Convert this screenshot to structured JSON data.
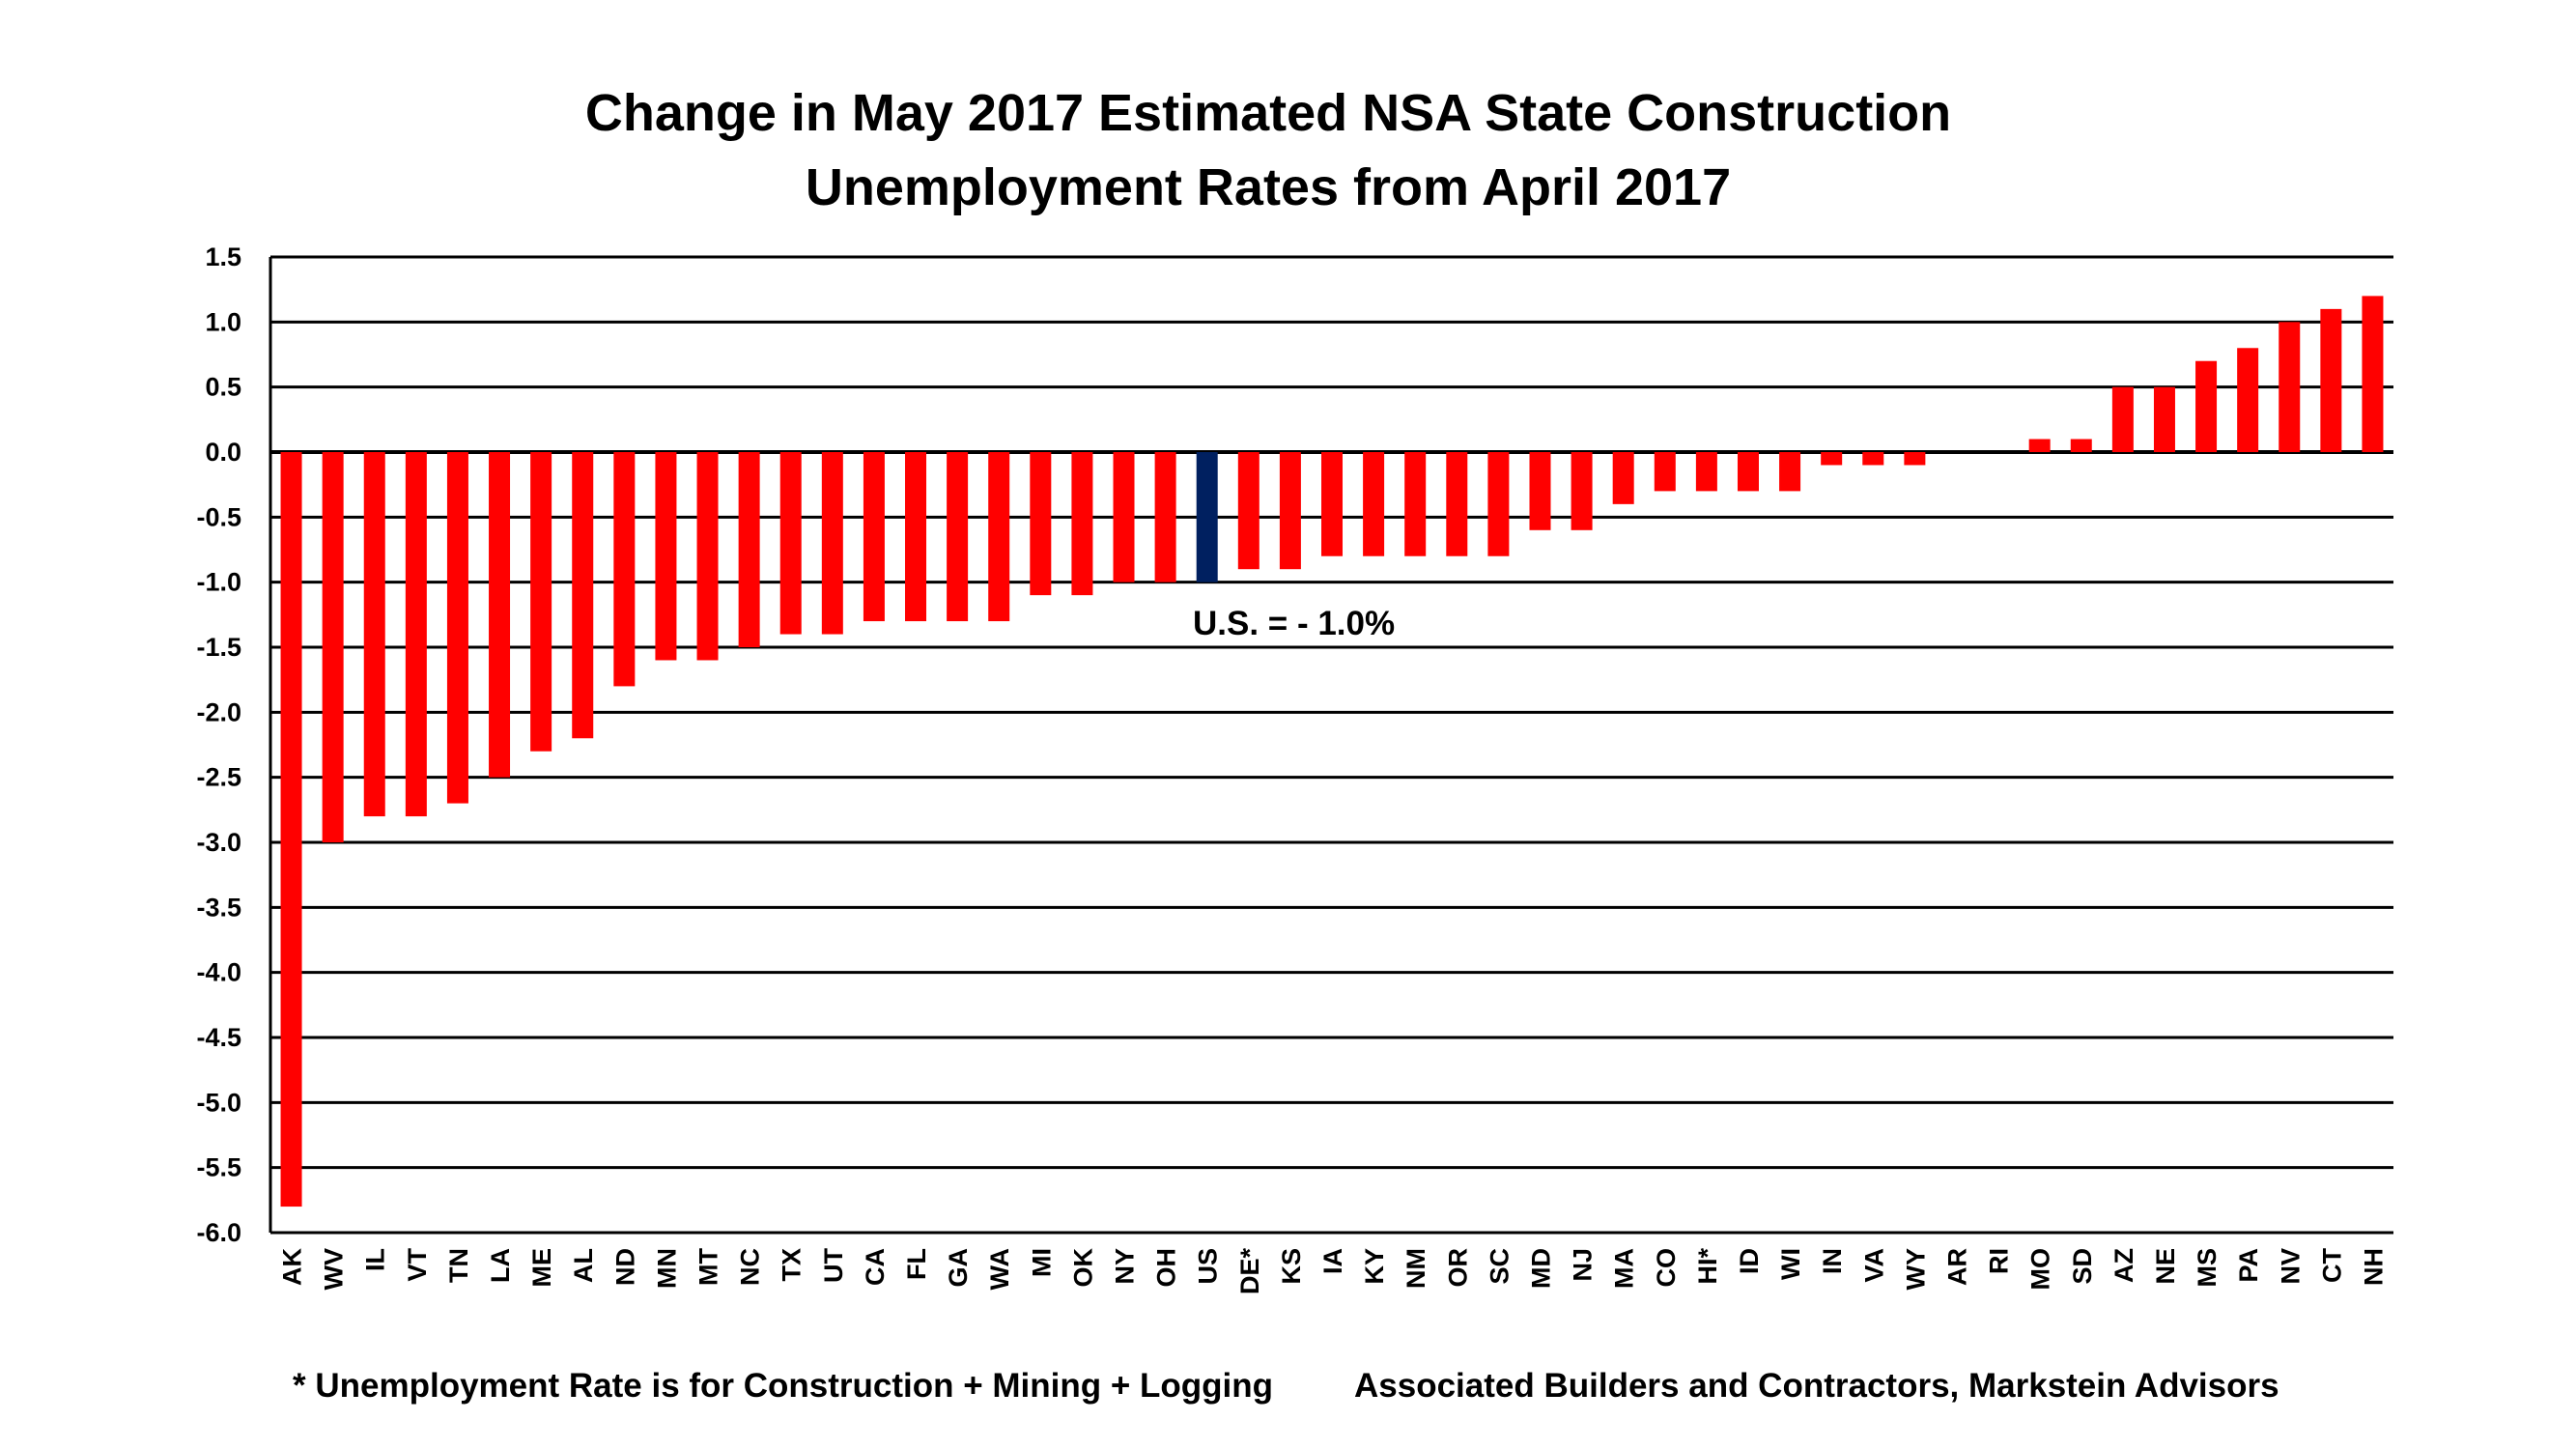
{
  "chart_data": {
    "type": "bar",
    "title": [
      "Change in May 2017 Estimated NSA State Construction",
      "Unemployment Rates from April 2017"
    ],
    "xlabel": "",
    "ylabel": "",
    "ylim": [
      -6.0,
      1.5
    ],
    "yticks": [
      "1.5",
      "1.0",
      "0.5",
      "0.0",
      "-0.5",
      "-1.0",
      "-1.5",
      "-2.0",
      "-2.5",
      "-3.0",
      "-3.5",
      "-4.0",
      "-4.5",
      "-5.0",
      "-5.5",
      "-6.0"
    ],
    "grid": true,
    "categories": [
      "AK",
      "WV",
      "IL",
      "VT",
      "TN",
      "LA",
      "ME",
      "AL",
      "ND",
      "MN",
      "MT",
      "NC",
      "TX",
      "UT",
      "CA",
      "FL",
      "GA",
      "WA",
      "MI",
      "OK",
      "NY",
      "OH",
      "US",
      "DE*",
      "KS",
      "IA",
      "KY",
      "NM",
      "OR",
      "SC",
      "MD",
      "NJ",
      "MA",
      "CO",
      "HI*",
      "ID",
      "WI",
      "IN",
      "VA",
      "WY",
      "AR",
      "RI",
      "MO",
      "SD",
      "AZ",
      "NE",
      "MS",
      "PA",
      "NV",
      "CT",
      "NH"
    ],
    "values": [
      -5.8,
      -3.0,
      -2.8,
      -2.8,
      -2.7,
      -2.5,
      -2.3,
      -2.2,
      -1.8,
      -1.6,
      -1.6,
      -1.5,
      -1.4,
      -1.4,
      -1.3,
      -1.3,
      -1.3,
      -1.3,
      -1.1,
      -1.1,
      -1.0,
      -1.0,
      -1.0,
      -0.9,
      -0.9,
      -0.8,
      -0.8,
      -0.8,
      -0.8,
      -0.8,
      -0.6,
      -0.6,
      -0.4,
      -0.3,
      -0.3,
      -0.3,
      -0.3,
      -0.1,
      -0.1,
      -0.1,
      0.0,
      0.0,
      0.1,
      0.1,
      0.5,
      0.5,
      0.7,
      0.8,
      1.0,
      1.1,
      1.2
    ],
    "colors": {
      "default": "#ff0000",
      "highlight": "#002060",
      "highlight_category": "US"
    },
    "annotation": "U.S. = - 1.0%",
    "footnote_left": "* Unemployment Rate is for Construction + Mining + Logging",
    "footnote_right": "Associated Builders and Contractors, Markstein Advisors"
  }
}
